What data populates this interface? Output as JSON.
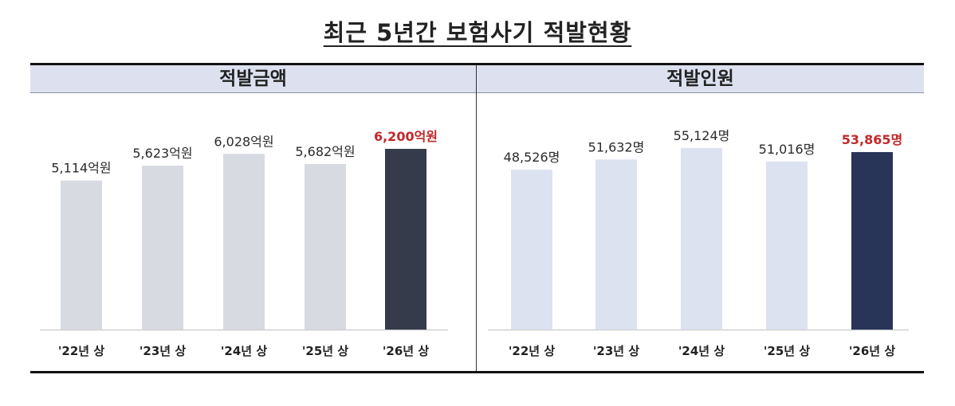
{
  "title": "최근 5년간 보험사기 적발현황",
  "colors": {
    "left_bar": "#d7dae0",
    "left_highlight": "#363b4b",
    "right_bar": "#dde2f1",
    "right_highlight": "#283458",
    "highlight_label": "#c0282a",
    "header_bg": "#dde1ef"
  },
  "chart_data": [
    {
      "type": "bar",
      "title": "적발금액",
      "categories": [
        "'22년 상",
        "'23년 상",
        "'24년 상",
        "'25년 상",
        "'26년 상"
      ],
      "values": [
        5114,
        5623,
        6028,
        5682,
        6200
      ],
      "data_labels": [
        "5,114억원",
        "5,623억원",
        "6,028억원",
        "5,682억원",
        "6,200억원"
      ],
      "unit": "억원",
      "highlight_index": 4,
      "ylim": [
        0,
        6500
      ],
      "grid": false
    },
    {
      "type": "bar",
      "title": "적발인원",
      "categories": [
        "'22년 상",
        "'23년 상",
        "'24년 상",
        "'25년 상",
        "'26년 상"
      ],
      "values": [
        48526,
        51632,
        55124,
        51016,
        53865
      ],
      "data_labels": [
        "48,526명",
        "51,632명",
        "55,124명",
        "51,016명",
        "53,865명"
      ],
      "unit": "명",
      "highlight_index": 4,
      "ylim": [
        0,
        57500
      ],
      "grid": false
    }
  ]
}
